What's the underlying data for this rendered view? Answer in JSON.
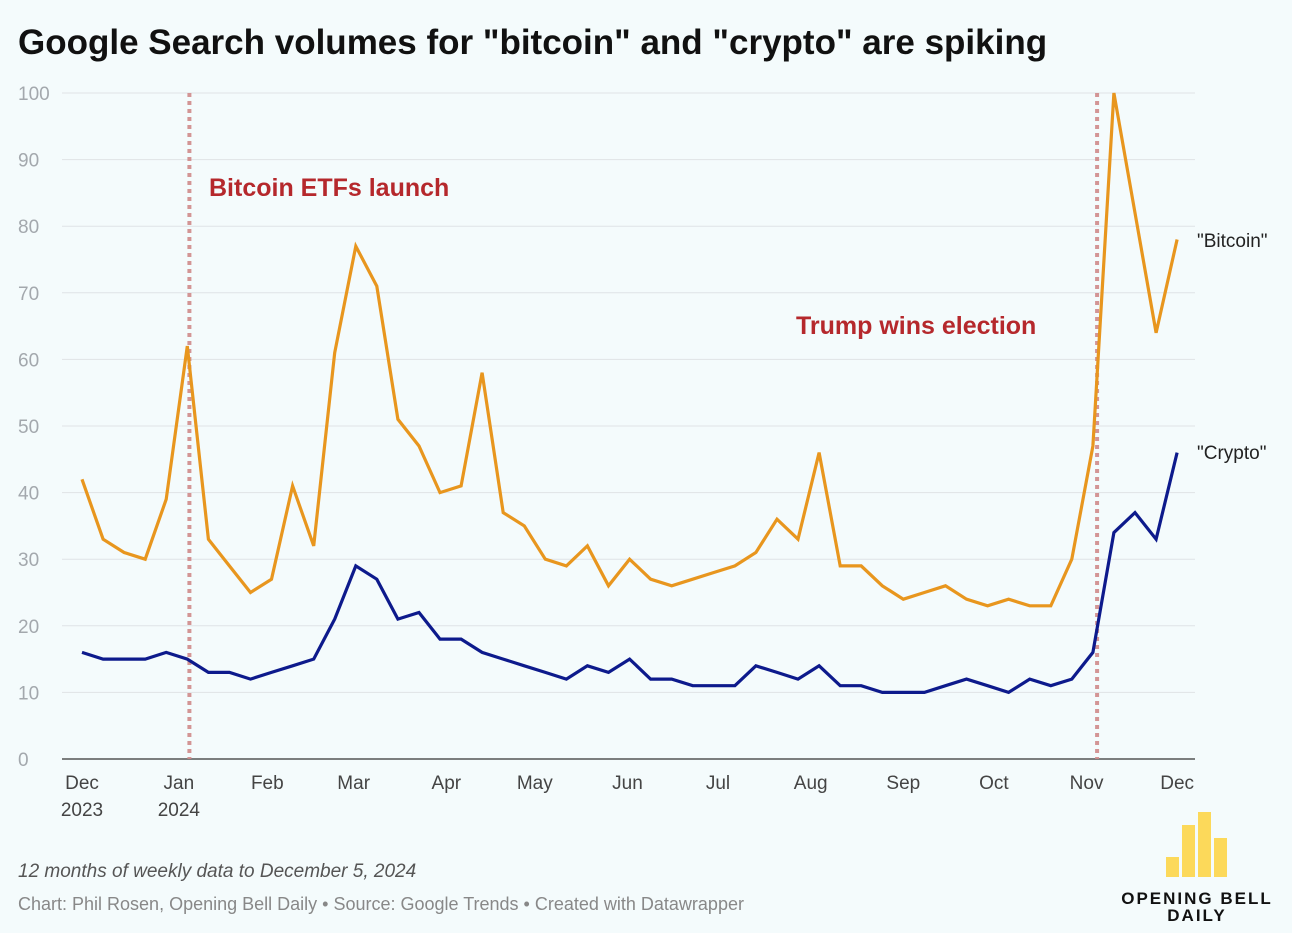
{
  "chart_data": {
    "type": "line",
    "title": "Google Search volumes for \"bitcoin\" and \"crypto\" are spiking",
    "xlabel": "",
    "ylabel": "",
    "ylim": [
      0,
      100
    ],
    "yticks": [
      "0",
      "10",
      "20",
      "30",
      "40",
      "50",
      "60",
      "70",
      "80",
      "90",
      "100"
    ],
    "grid": true,
    "x_ticks": [
      {
        "week": 0,
        "label": "Dec",
        "sub": "2023"
      },
      {
        "week": 4.6,
        "label": "Jan",
        "sub": "2024"
      },
      {
        "week": 8.8,
        "label": "Feb",
        "sub": ""
      },
      {
        "week": 12.9,
        "label": "Mar",
        "sub": ""
      },
      {
        "week": 17.3,
        "label": "Apr",
        "sub": ""
      },
      {
        "week": 21.5,
        "label": "May",
        "sub": ""
      },
      {
        "week": 25.9,
        "label": "Jun",
        "sub": ""
      },
      {
        "week": 30.2,
        "label": "Jul",
        "sub": ""
      },
      {
        "week": 34.6,
        "label": "Aug",
        "sub": ""
      },
      {
        "week": 39.0,
        "label": "Sep",
        "sub": ""
      },
      {
        "week": 43.3,
        "label": "Oct",
        "sub": ""
      },
      {
        "week": 47.7,
        "label": "Nov",
        "sub": ""
      },
      {
        "week": 52,
        "label": "Dec",
        "sub": ""
      }
    ],
    "series": [
      {
        "name": "\"Bitcoin\"",
        "color": "#e8961e",
        "values": [
          42,
          33,
          31,
          30,
          39,
          62,
          33,
          29,
          25,
          27,
          41,
          32,
          61,
          77,
          71,
          51,
          47,
          40,
          41,
          58,
          37,
          35,
          30,
          29,
          32,
          26,
          30,
          27,
          26,
          27,
          28,
          29,
          31,
          36,
          33,
          46,
          29,
          29,
          26,
          24,
          25,
          26,
          24,
          23,
          24,
          23,
          23,
          30,
          47,
          100,
          82,
          64,
          78
        ]
      },
      {
        "name": "\"Crypto\"",
        "color": "#0d1a8c",
        "values": [
          16,
          15,
          15,
          15,
          16,
          15,
          13,
          13,
          12,
          13,
          14,
          15,
          21,
          29,
          27,
          21,
          22,
          18,
          18,
          16,
          15,
          14,
          13,
          12,
          14,
          13,
          15,
          12,
          12,
          11,
          11,
          11,
          14,
          13,
          12,
          14,
          11,
          11,
          10,
          10,
          10,
          11,
          12,
          11,
          10,
          12,
          11,
          12,
          16,
          34,
          37,
          33,
          46
        ]
      }
    ],
    "annotations": [
      {
        "week": 5.1,
        "text": "Bitcoin ETFs launch",
        "color": "#b5282c"
      },
      {
        "week": 48.2,
        "text": "Trump wins election",
        "color": "#b5282c"
      }
    ]
  },
  "footer": {
    "note": "12 months of weekly data to December 5, 2024",
    "credit": "Chart: Phil Rosen, Opening Bell Daily • Source: Google Trends • Created with Datawrapper"
  },
  "logo": {
    "line1": "OPENING BELL",
    "line2": "DAILY",
    "color": "#fcd95a"
  }
}
